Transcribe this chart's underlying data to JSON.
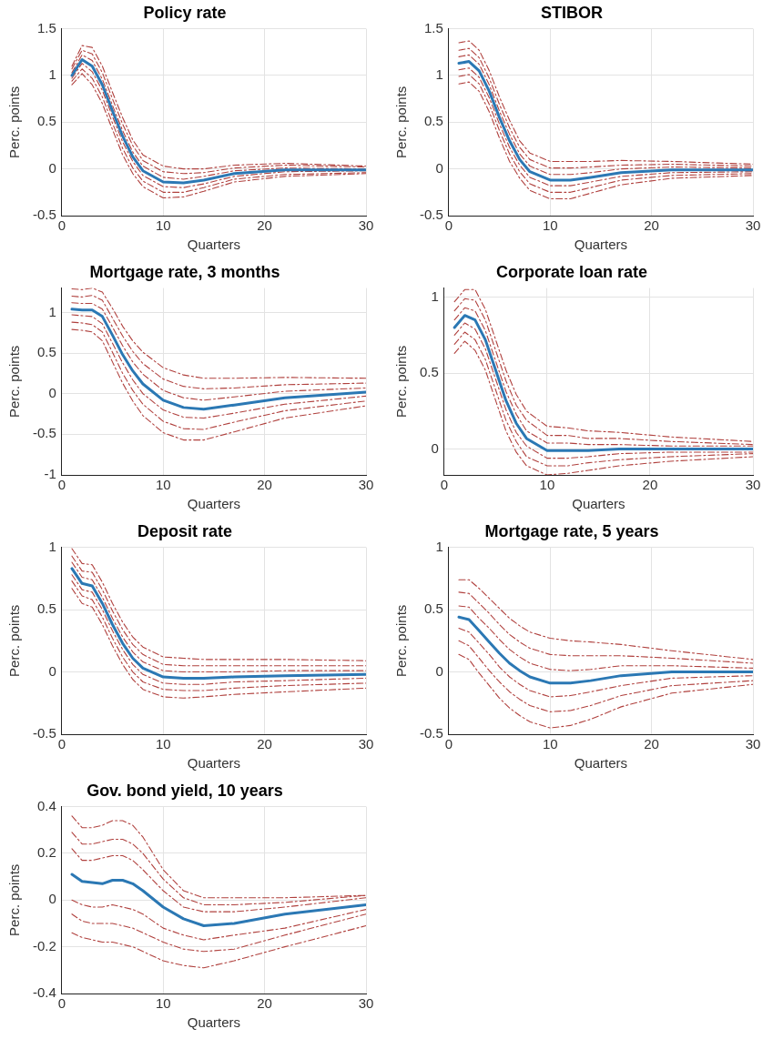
{
  "chart_data": [
    {
      "type": "line",
      "title": "Policy rate",
      "xlabel": "Quarters",
      "ylabel": "Perc. points",
      "xlim": [
        0,
        30
      ],
      "xticks": [
        0,
        10,
        20,
        30
      ],
      "ylim": [
        -0.5,
        1.5
      ],
      "yticks": [
        -0.5,
        0,
        0.5,
        1,
        1.5
      ],
      "grid": true,
      "legend": false,
      "marker": "none",
      "x": [
        1,
        2,
        3,
        4,
        5,
        6,
        7,
        8,
        10,
        12,
        14,
        17,
        22,
        30
      ],
      "series": [
        {
          "color": "#2b78b4",
          "line_style": "solid",
          "values": [
            1.0,
            1.17,
            1.1,
            0.9,
            0.62,
            0.35,
            0.13,
            -0.02,
            -0.14,
            -0.15,
            -0.12,
            -0.05,
            -0.01,
            -0.01
          ]
        },
        {
          "color": "#b0413e",
          "line_style": "dashed",
          "values": [
            1.1,
            1.32,
            1.3,
            1.1,
            0.82,
            0.55,
            0.31,
            0.15,
            0.03,
            0.0,
            0.0,
            0.04,
            0.06,
            0.03
          ]
        },
        {
          "color": "#b0413e",
          "line_style": "dashed",
          "values": [
            1.07,
            1.27,
            1.23,
            1.03,
            0.75,
            0.48,
            0.25,
            0.09,
            -0.03,
            -0.05,
            -0.04,
            0.01,
            0.04,
            0.02
          ]
        },
        {
          "color": "#b0413e",
          "line_style": "dashed",
          "values": [
            1.03,
            1.22,
            1.16,
            0.96,
            0.68,
            0.41,
            0.18,
            0.03,
            -0.09,
            -0.11,
            -0.08,
            -0.02,
            0.01,
            0.0
          ]
        },
        {
          "color": "#b0413e",
          "line_style": "dashed",
          "values": [
            0.97,
            1.13,
            1.04,
            0.84,
            0.56,
            0.29,
            0.08,
            -0.07,
            -0.19,
            -0.2,
            -0.16,
            -0.08,
            -0.03,
            -0.02
          ]
        },
        {
          "color": "#b0413e",
          "line_style": "dashed",
          "values": [
            0.94,
            1.07,
            0.97,
            0.77,
            0.49,
            0.22,
            0.01,
            -0.13,
            -0.25,
            -0.25,
            -0.2,
            -0.11,
            -0.06,
            -0.04
          ]
        },
        {
          "color": "#b0413e",
          "line_style": "dashed",
          "values": [
            0.9,
            1.02,
            0.9,
            0.7,
            0.42,
            0.15,
            -0.05,
            -0.19,
            -0.31,
            -0.3,
            -0.24,
            -0.14,
            -0.08,
            -0.05
          ]
        }
      ]
    },
    {
      "type": "line",
      "title": "STIBOR",
      "xlabel": "Quarters",
      "ylabel": "Perc. points",
      "xlim": [
        0,
        30
      ],
      "xticks": [
        0,
        10,
        20,
        30
      ],
      "ylim": [
        -0.5,
        1.5
      ],
      "yticks": [
        -0.5,
        0,
        0.5,
        1,
        1.5
      ],
      "grid": true,
      "legend": false,
      "marker": "none",
      "x": [
        1,
        2,
        3,
        4,
        5,
        6,
        7,
        8,
        10,
        12,
        14,
        17,
        22,
        30
      ],
      "series": [
        {
          "color": "#2b78b4",
          "line_style": "solid",
          "values": [
            1.13,
            1.15,
            1.05,
            0.83,
            0.55,
            0.3,
            0.1,
            -0.03,
            -0.12,
            -0.12,
            -0.09,
            -0.04,
            -0.01,
            -0.01
          ]
        },
        {
          "color": "#b0413e",
          "line_style": "dashed",
          "values": [
            1.35,
            1.37,
            1.27,
            1.05,
            0.77,
            0.52,
            0.3,
            0.17,
            0.08,
            0.08,
            0.08,
            0.09,
            0.08,
            0.05
          ]
        },
        {
          "color": "#b0413e",
          "line_style": "dashed",
          "values": [
            1.27,
            1.29,
            1.19,
            0.97,
            0.69,
            0.44,
            0.23,
            0.1,
            0.01,
            0.01,
            0.02,
            0.04,
            0.05,
            0.03
          ]
        },
        {
          "color": "#b0413e",
          "line_style": "dashed",
          "values": [
            1.2,
            1.22,
            1.12,
            0.9,
            0.62,
            0.37,
            0.16,
            0.03,
            -0.06,
            -0.06,
            -0.04,
            0.0,
            0.02,
            0.01
          ]
        },
        {
          "color": "#b0413e",
          "line_style": "dashed",
          "values": [
            1.06,
            1.08,
            0.98,
            0.76,
            0.48,
            0.23,
            0.04,
            -0.09,
            -0.18,
            -0.18,
            -0.14,
            -0.08,
            -0.04,
            -0.03
          ]
        },
        {
          "color": "#b0413e",
          "line_style": "dashed",
          "values": [
            0.99,
            1.01,
            0.91,
            0.69,
            0.41,
            0.16,
            -0.03,
            -0.16,
            -0.25,
            -0.25,
            -0.2,
            -0.12,
            -0.07,
            -0.05
          ]
        },
        {
          "color": "#b0413e",
          "line_style": "dashed",
          "values": [
            0.91,
            0.93,
            0.83,
            0.61,
            0.33,
            0.08,
            -0.1,
            -0.23,
            -0.32,
            -0.32,
            -0.26,
            -0.17,
            -0.1,
            -0.07
          ]
        }
      ]
    },
    {
      "type": "line",
      "title": "Mortgage rate, 3 months",
      "xlabel": "Quarters",
      "ylabel": "Perc. points",
      "xlim": [
        0,
        30
      ],
      "xticks": [
        0,
        10,
        20,
        30
      ],
      "ylim": [
        -1,
        1.3
      ],
      "yticks": [
        -1,
        -0.5,
        0,
        0.5,
        1
      ],
      "grid": true,
      "legend": false,
      "marker": "none",
      "x": [
        1,
        2,
        3,
        4,
        5,
        6,
        7,
        8,
        10,
        12,
        14,
        17,
        22,
        30
      ],
      "series": [
        {
          "color": "#2b78b4",
          "line_style": "solid",
          "values": [
            1.04,
            1.03,
            1.03,
            0.95,
            0.72,
            0.48,
            0.28,
            0.12,
            -0.08,
            -0.17,
            -0.19,
            -0.14,
            -0.05,
            0.02
          ]
        },
        {
          "color": "#b0413e",
          "line_style": "dashed",
          "values": [
            1.29,
            1.28,
            1.3,
            1.25,
            1.05,
            0.83,
            0.65,
            0.51,
            0.32,
            0.23,
            0.19,
            0.19,
            0.2,
            0.19
          ]
        },
        {
          "color": "#b0413e",
          "line_style": "dashed",
          "values": [
            1.2,
            1.19,
            1.21,
            1.15,
            0.93,
            0.71,
            0.52,
            0.37,
            0.18,
            0.09,
            0.06,
            0.07,
            0.11,
            0.13
          ]
        },
        {
          "color": "#b0413e",
          "line_style": "dashed",
          "values": [
            1.12,
            1.11,
            1.11,
            1.04,
            0.82,
            0.59,
            0.39,
            0.24,
            0.04,
            -0.05,
            -0.08,
            -0.04,
            0.03,
            0.07
          ]
        },
        {
          "color": "#b0413e",
          "line_style": "dashed",
          "values": [
            0.97,
            0.96,
            0.95,
            0.86,
            0.62,
            0.38,
            0.17,
            0.0,
            -0.2,
            -0.29,
            -0.3,
            -0.24,
            -0.13,
            -0.03
          ]
        },
        {
          "color": "#b0413e",
          "line_style": "dashed",
          "values": [
            0.88,
            0.87,
            0.85,
            0.76,
            0.51,
            0.25,
            0.04,
            -0.13,
            -0.34,
            -0.43,
            -0.44,
            -0.35,
            -0.21,
            -0.09
          ]
        },
        {
          "color": "#b0413e",
          "line_style": "dashed",
          "values": [
            0.79,
            0.78,
            0.76,
            0.65,
            0.39,
            0.13,
            -0.09,
            -0.27,
            -0.48,
            -0.57,
            -0.57,
            -0.47,
            -0.3,
            -0.15
          ]
        }
      ]
    },
    {
      "type": "line",
      "title": "Corporate loan rate",
      "xlabel": "Quarters",
      "ylabel": "Perc. points",
      "xlim": [
        0,
        30
      ],
      "xticks": [
        0,
        10,
        20,
        30
      ],
      "ylim": [
        -0.17,
        1.06
      ],
      "yticks": [
        0,
        0.5,
        1
      ],
      "grid": true,
      "legend": false,
      "marker": "none",
      "x": [
        1,
        2,
        3,
        4,
        5,
        6,
        7,
        8,
        10,
        12,
        14,
        17,
        22,
        30
      ],
      "series": [
        {
          "color": "#2b78b4",
          "line_style": "solid",
          "values": [
            0.8,
            0.88,
            0.85,
            0.72,
            0.52,
            0.32,
            0.17,
            0.07,
            -0.01,
            -0.01,
            -0.01,
            0.0,
            0.0,
            0.0
          ]
        },
        {
          "color": "#b0413e",
          "line_style": "dashed",
          "values": [
            0.97,
            1.05,
            1.05,
            0.92,
            0.72,
            0.52,
            0.36,
            0.25,
            0.15,
            0.14,
            0.12,
            0.11,
            0.08,
            0.05
          ]
        },
        {
          "color": "#b0413e",
          "line_style": "dashed",
          "values": [
            0.91,
            0.99,
            0.98,
            0.85,
            0.65,
            0.45,
            0.29,
            0.19,
            0.09,
            0.09,
            0.07,
            0.07,
            0.05,
            0.03
          ]
        },
        {
          "color": "#b0413e",
          "line_style": "dashed",
          "values": [
            0.85,
            0.93,
            0.91,
            0.78,
            0.58,
            0.38,
            0.23,
            0.12,
            0.04,
            0.04,
            0.03,
            0.03,
            0.02,
            0.02
          ]
        },
        {
          "color": "#b0413e",
          "line_style": "dashed",
          "values": [
            0.75,
            0.83,
            0.79,
            0.66,
            0.46,
            0.26,
            0.11,
            0.02,
            -0.06,
            -0.06,
            -0.05,
            -0.03,
            -0.02,
            -0.02
          ]
        },
        {
          "color": "#b0413e",
          "line_style": "dashed",
          "values": [
            0.69,
            0.77,
            0.72,
            0.59,
            0.39,
            0.19,
            0.05,
            -0.05,
            -0.11,
            -0.11,
            -0.09,
            -0.07,
            -0.05,
            -0.03
          ]
        },
        {
          "color": "#b0413e",
          "line_style": "dashed",
          "values": [
            0.63,
            0.71,
            0.65,
            0.52,
            0.32,
            0.12,
            -0.02,
            -0.11,
            -0.17,
            -0.16,
            -0.14,
            -0.11,
            -0.08,
            -0.05
          ]
        }
      ]
    },
    {
      "type": "line",
      "title": "Deposit rate",
      "xlabel": "Quarters",
      "ylabel": "Perc. points",
      "xlim": [
        0,
        30
      ],
      "xticks": [
        0,
        10,
        20,
        30
      ],
      "ylim": [
        -0.5,
        1
      ],
      "yticks": [
        -0.5,
        0,
        0.5,
        1
      ],
      "grid": true,
      "legend": false,
      "marker": "none",
      "x": [
        1,
        2,
        3,
        4,
        5,
        6,
        7,
        8,
        10,
        12,
        14,
        17,
        22,
        30
      ],
      "series": [
        {
          "color": "#2b78b4",
          "line_style": "solid",
          "values": [
            0.83,
            0.71,
            0.69,
            0.55,
            0.38,
            0.23,
            0.11,
            0.03,
            -0.04,
            -0.05,
            -0.05,
            -0.04,
            -0.03,
            -0.02
          ]
        },
        {
          "color": "#b0413e",
          "line_style": "dashed",
          "values": [
            0.99,
            0.87,
            0.86,
            0.72,
            0.55,
            0.4,
            0.28,
            0.2,
            0.12,
            0.11,
            0.1,
            0.1,
            0.1,
            0.09
          ]
        },
        {
          "color": "#b0413e",
          "line_style": "dashed",
          "values": [
            0.93,
            0.81,
            0.8,
            0.66,
            0.49,
            0.34,
            0.22,
            0.14,
            0.06,
            0.05,
            0.05,
            0.05,
            0.05,
            0.05
          ]
        },
        {
          "color": "#b0413e",
          "line_style": "dashed",
          "values": [
            0.88,
            0.76,
            0.74,
            0.6,
            0.43,
            0.28,
            0.16,
            0.08,
            0.01,
            0.0,
            0.0,
            0.0,
            0.01,
            0.01
          ]
        },
        {
          "color": "#b0413e",
          "line_style": "dashed",
          "values": [
            0.78,
            0.66,
            0.64,
            0.5,
            0.33,
            0.18,
            0.06,
            -0.02,
            -0.09,
            -0.1,
            -0.1,
            -0.08,
            -0.07,
            -0.05
          ]
        },
        {
          "color": "#b0413e",
          "line_style": "dashed",
          "values": [
            0.73,
            0.61,
            0.58,
            0.44,
            0.27,
            0.12,
            0.0,
            -0.08,
            -0.14,
            -0.15,
            -0.15,
            -0.13,
            -0.11,
            -0.09
          ]
        },
        {
          "color": "#b0413e",
          "line_style": "dashed",
          "values": [
            0.67,
            0.55,
            0.52,
            0.38,
            0.21,
            0.06,
            -0.06,
            -0.14,
            -0.2,
            -0.21,
            -0.2,
            -0.18,
            -0.16,
            -0.13
          ]
        }
      ]
    },
    {
      "type": "line",
      "title": "Mortgage rate, 5 years",
      "xlabel": "Quarters",
      "ylabel": "Perc. points",
      "xlim": [
        0,
        30
      ],
      "xticks": [
        0,
        10,
        20,
        30
      ],
      "ylim": [
        -0.5,
        1
      ],
      "yticks": [
        -0.5,
        0,
        0.5,
        1
      ],
      "grid": true,
      "legend": false,
      "marker": "none",
      "x": [
        1,
        2,
        3,
        4,
        5,
        6,
        7,
        8,
        10,
        12,
        14,
        17,
        22,
        30
      ],
      "series": [
        {
          "color": "#2b78b4",
          "line_style": "solid",
          "values": [
            0.44,
            0.42,
            0.33,
            0.24,
            0.15,
            0.07,
            0.01,
            -0.04,
            -0.09,
            -0.09,
            -0.07,
            -0.03,
            0.0,
            0.0
          ]
        },
        {
          "color": "#b0413e",
          "line_style": "dashed",
          "values": [
            0.74,
            0.74,
            0.67,
            0.59,
            0.51,
            0.43,
            0.37,
            0.32,
            0.27,
            0.25,
            0.24,
            0.22,
            0.17,
            0.1
          ]
        },
        {
          "color": "#b0413e",
          "line_style": "dashed",
          "values": [
            0.64,
            0.63,
            0.55,
            0.47,
            0.38,
            0.3,
            0.24,
            0.19,
            0.14,
            0.13,
            0.13,
            0.13,
            0.11,
            0.07
          ]
        },
        {
          "color": "#b0413e",
          "line_style": "dashed",
          "values": [
            0.53,
            0.52,
            0.43,
            0.35,
            0.26,
            0.18,
            0.12,
            0.07,
            0.02,
            0.01,
            0.02,
            0.05,
            0.05,
            0.03
          ]
        },
        {
          "color": "#b0413e",
          "line_style": "dashed",
          "values": [
            0.35,
            0.32,
            0.23,
            0.14,
            0.04,
            -0.04,
            -0.1,
            -0.15,
            -0.2,
            -0.19,
            -0.16,
            -0.11,
            -0.05,
            -0.03
          ]
        },
        {
          "color": "#b0413e",
          "line_style": "dashed",
          "values": [
            0.25,
            0.21,
            0.11,
            0.01,
            -0.08,
            -0.16,
            -0.22,
            -0.27,
            -0.32,
            -0.31,
            -0.27,
            -0.19,
            -0.11,
            -0.07
          ]
        },
        {
          "color": "#b0413e",
          "line_style": "dashed",
          "values": [
            0.14,
            0.1,
            -0.01,
            -0.11,
            -0.21,
            -0.29,
            -0.35,
            -0.4,
            -0.45,
            -0.43,
            -0.38,
            -0.28,
            -0.17,
            -0.1
          ]
        }
      ]
    },
    {
      "type": "line",
      "title": "Gov. bond yield, 10 years",
      "xlabel": "Quarters",
      "ylabel": "Perc. points",
      "xlim": [
        0,
        30
      ],
      "xticks": [
        0,
        10,
        20,
        30
      ],
      "ylim": [
        -0.4,
        0.4
      ],
      "yticks": [
        -0.4,
        -0.2,
        0,
        0.2,
        0.4
      ],
      "grid": true,
      "legend": false,
      "marker": "none",
      "x": [
        1,
        2,
        3,
        4,
        5,
        6,
        7,
        8,
        10,
        12,
        14,
        17,
        22,
        30
      ],
      "series": [
        {
          "color": "#2b78b4",
          "line_style": "solid",
          "values": [
            0.11,
            0.08,
            0.075,
            0.07,
            0.085,
            0.085,
            0.07,
            0.04,
            -0.03,
            -0.08,
            -0.11,
            -0.1,
            -0.06,
            -0.02
          ]
        },
        {
          "color": "#b0413e",
          "line_style": "dashed",
          "values": [
            0.36,
            0.31,
            0.31,
            0.32,
            0.34,
            0.34,
            0.32,
            0.27,
            0.13,
            0.04,
            0.01,
            0.01,
            0.01,
            0.02
          ]
        },
        {
          "color": "#b0413e",
          "line_style": "dashed",
          "values": [
            0.29,
            0.24,
            0.24,
            0.25,
            0.26,
            0.26,
            0.24,
            0.2,
            0.09,
            0.01,
            -0.02,
            -0.02,
            -0.01,
            0.02
          ]
        },
        {
          "color": "#b0413e",
          "line_style": "dashed",
          "values": [
            0.22,
            0.17,
            0.17,
            0.18,
            0.19,
            0.19,
            0.17,
            0.13,
            0.04,
            -0.03,
            -0.05,
            -0.05,
            -0.03,
            0.01
          ]
        },
        {
          "color": "#b0413e",
          "line_style": "dashed",
          "values": [
            0.0,
            -0.02,
            -0.03,
            -0.03,
            -0.02,
            -0.03,
            -0.04,
            -0.06,
            -0.12,
            -0.15,
            -0.17,
            -0.15,
            -0.12,
            -0.04
          ]
        },
        {
          "color": "#b0413e",
          "line_style": "dashed",
          "values": [
            -0.06,
            -0.09,
            -0.1,
            -0.1,
            -0.1,
            -0.11,
            -0.12,
            -0.14,
            -0.18,
            -0.21,
            -0.22,
            -0.21,
            -0.15,
            -0.06
          ]
        },
        {
          "color": "#b0413e",
          "line_style": "dashed",
          "values": [
            -0.14,
            -0.16,
            -0.17,
            -0.18,
            -0.18,
            -0.19,
            -0.2,
            -0.22,
            -0.26,
            -0.28,
            -0.29,
            -0.26,
            -0.2,
            -0.11
          ]
        }
      ]
    }
  ]
}
